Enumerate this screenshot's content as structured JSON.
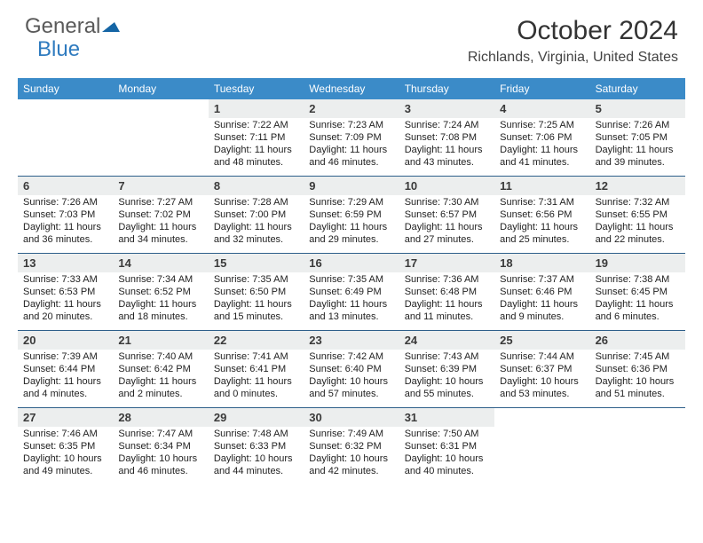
{
  "logo": {
    "text1": "General",
    "text2": "Blue"
  },
  "title": "October 2024",
  "location": "Richlands, Virginia, United States",
  "colors": {
    "header_bg": "#3b8bc8",
    "header_text": "#ffffff",
    "daynum_bg": "#eceeee",
    "week_border": "#2e5f8a",
    "title_color": "#333333",
    "logo_gray": "#5a5a5a",
    "logo_blue": "#2f7bbf"
  },
  "dow": [
    "Sunday",
    "Monday",
    "Tuesday",
    "Wednesday",
    "Thursday",
    "Friday",
    "Saturday"
  ],
  "weeks": [
    [
      {
        "empty": true
      },
      {
        "empty": true
      },
      {
        "n": "1",
        "sr": "7:22 AM",
        "ss": "7:11 PM",
        "dl": "11 hours and 48 minutes."
      },
      {
        "n": "2",
        "sr": "7:23 AM",
        "ss": "7:09 PM",
        "dl": "11 hours and 46 minutes."
      },
      {
        "n": "3",
        "sr": "7:24 AM",
        "ss": "7:08 PM",
        "dl": "11 hours and 43 minutes."
      },
      {
        "n": "4",
        "sr": "7:25 AM",
        "ss": "7:06 PM",
        "dl": "11 hours and 41 minutes."
      },
      {
        "n": "5",
        "sr": "7:26 AM",
        "ss": "7:05 PM",
        "dl": "11 hours and 39 minutes."
      }
    ],
    [
      {
        "n": "6",
        "sr": "7:26 AM",
        "ss": "7:03 PM",
        "dl": "11 hours and 36 minutes."
      },
      {
        "n": "7",
        "sr": "7:27 AM",
        "ss": "7:02 PM",
        "dl": "11 hours and 34 minutes."
      },
      {
        "n": "8",
        "sr": "7:28 AM",
        "ss": "7:00 PM",
        "dl": "11 hours and 32 minutes."
      },
      {
        "n": "9",
        "sr": "7:29 AM",
        "ss": "6:59 PM",
        "dl": "11 hours and 29 minutes."
      },
      {
        "n": "10",
        "sr": "7:30 AM",
        "ss": "6:57 PM",
        "dl": "11 hours and 27 minutes."
      },
      {
        "n": "11",
        "sr": "7:31 AM",
        "ss": "6:56 PM",
        "dl": "11 hours and 25 minutes."
      },
      {
        "n": "12",
        "sr": "7:32 AM",
        "ss": "6:55 PM",
        "dl": "11 hours and 22 minutes."
      }
    ],
    [
      {
        "n": "13",
        "sr": "7:33 AM",
        "ss": "6:53 PM",
        "dl": "11 hours and 20 minutes."
      },
      {
        "n": "14",
        "sr": "7:34 AM",
        "ss": "6:52 PM",
        "dl": "11 hours and 18 minutes."
      },
      {
        "n": "15",
        "sr": "7:35 AM",
        "ss": "6:50 PM",
        "dl": "11 hours and 15 minutes."
      },
      {
        "n": "16",
        "sr": "7:35 AM",
        "ss": "6:49 PM",
        "dl": "11 hours and 13 minutes."
      },
      {
        "n": "17",
        "sr": "7:36 AM",
        "ss": "6:48 PM",
        "dl": "11 hours and 11 minutes."
      },
      {
        "n": "18",
        "sr": "7:37 AM",
        "ss": "6:46 PM",
        "dl": "11 hours and 9 minutes."
      },
      {
        "n": "19",
        "sr": "7:38 AM",
        "ss": "6:45 PM",
        "dl": "11 hours and 6 minutes."
      }
    ],
    [
      {
        "n": "20",
        "sr": "7:39 AM",
        "ss": "6:44 PM",
        "dl": "11 hours and 4 minutes."
      },
      {
        "n": "21",
        "sr": "7:40 AM",
        "ss": "6:42 PM",
        "dl": "11 hours and 2 minutes."
      },
      {
        "n": "22",
        "sr": "7:41 AM",
        "ss": "6:41 PM",
        "dl": "11 hours and 0 minutes."
      },
      {
        "n": "23",
        "sr": "7:42 AM",
        "ss": "6:40 PM",
        "dl": "10 hours and 57 minutes."
      },
      {
        "n": "24",
        "sr": "7:43 AM",
        "ss": "6:39 PM",
        "dl": "10 hours and 55 minutes."
      },
      {
        "n": "25",
        "sr": "7:44 AM",
        "ss": "6:37 PM",
        "dl": "10 hours and 53 minutes."
      },
      {
        "n": "26",
        "sr": "7:45 AM",
        "ss": "6:36 PM",
        "dl": "10 hours and 51 minutes."
      }
    ],
    [
      {
        "n": "27",
        "sr": "7:46 AM",
        "ss": "6:35 PM",
        "dl": "10 hours and 49 minutes."
      },
      {
        "n": "28",
        "sr": "7:47 AM",
        "ss": "6:34 PM",
        "dl": "10 hours and 46 minutes."
      },
      {
        "n": "29",
        "sr": "7:48 AM",
        "ss": "6:33 PM",
        "dl": "10 hours and 44 minutes."
      },
      {
        "n": "30",
        "sr": "7:49 AM",
        "ss": "6:32 PM",
        "dl": "10 hours and 42 minutes."
      },
      {
        "n": "31",
        "sr": "7:50 AM",
        "ss": "6:31 PM",
        "dl": "10 hours and 40 minutes."
      },
      {
        "empty": true
      },
      {
        "empty": true
      }
    ]
  ],
  "labels": {
    "sunrise": "Sunrise: ",
    "sunset": "Sunset: ",
    "daylight": "Daylight: "
  }
}
